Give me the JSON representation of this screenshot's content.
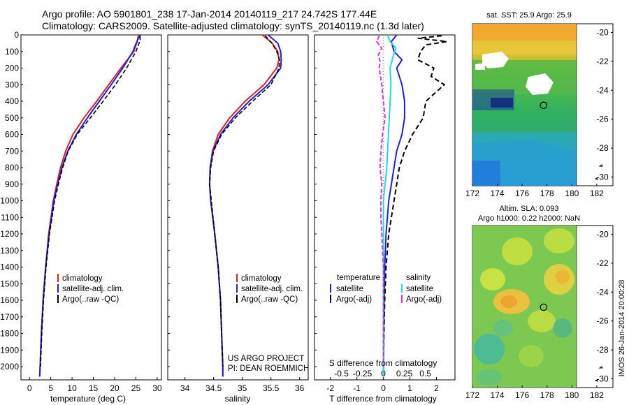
{
  "titles": {
    "line1": "Argo profile: AO 5901801_238 17-Jan-2014 20140119_217 24.742S 177.44E",
    "line2": "Climatology: CARS2009. Satellite-adjusted climatology: synTS_20140119.nc (1.3d later)"
  },
  "colors": {
    "climatology": "#e02020",
    "satellite": "#1f1fd8",
    "argo": "#000000",
    "sal_sat": "#22d8e6",
    "sal_argo": "#e030e0"
  },
  "depth_ticks": [
    "0",
    "100",
    "200",
    "300",
    "400",
    "500",
    "600",
    "700",
    "800",
    "900",
    "1000",
    "1100",
    "1200",
    "1300",
    "1400",
    "1500",
    "1600",
    "1700",
    "1800",
    "1900",
    "2000"
  ],
  "chart_data": [
    {
      "type": "line",
      "id": "temperature",
      "xlabel": "temperature (deg C)",
      "ylabel": "",
      "xlim": [
        -2,
        31
      ],
      "ylim": [
        2080,
        0
      ],
      "xticks": [
        0,
        5,
        10,
        15,
        20,
        25,
        30
      ],
      "legend": [
        "climatology",
        "satellite-adj. clim.",
        "Argo(..raw -QC)"
      ],
      "series": [
        {
          "name": "climatology",
          "depth": [
            0,
            40,
            100,
            200,
            300,
            400,
            500,
            600,
            700,
            800,
            900,
            1000,
            1200,
            1400,
            1600,
            1800,
            2000,
            2060
          ],
          "values": [
            25.6,
            25.3,
            24.5,
            21.5,
            18.6,
            15.8,
            12.8,
            10.2,
            8.5,
            7.3,
            6.4,
            5.6,
            4.5,
            3.8,
            3.2,
            2.8,
            2.5,
            2.4
          ]
        },
        {
          "name": "satellite-adj. clim.",
          "depth": [
            0,
            30,
            60,
            100,
            200,
            300,
            400,
            500,
            600,
            700,
            800,
            900,
            1000,
            1200,
            1400,
            1600,
            1800,
            2000,
            2060
          ],
          "values": [
            26.1,
            25.4,
            24.9,
            24.3,
            21.9,
            19.2,
            16.4,
            13.6,
            11.0,
            9.0,
            7.6,
            6.6,
            5.7,
            4.6,
            3.8,
            3.2,
            2.8,
            2.5,
            2.4
          ]
        },
        {
          "name": "Argo(..raw -QC)",
          "depth": [
            5,
            30,
            60,
            100,
            200,
            300,
            400,
            500,
            600,
            700,
            800,
            900,
            1000,
            1200,
            1400,
            1600,
            1800,
            2000
          ],
          "values": [
            26.0,
            26.0,
            25.6,
            25.0,
            22.8,
            20.2,
            17.3,
            14.3,
            11.2,
            9.1,
            7.8,
            6.8,
            5.9,
            4.7,
            3.9,
            3.3,
            2.9,
            2.6
          ]
        }
      ]
    },
    {
      "type": "line",
      "id": "salinity",
      "xlabel": "salinity",
      "ylabel": "",
      "xlim": [
        33.7,
        36.15
      ],
      "ylim": [
        2080,
        0
      ],
      "xticks": [
        34,
        34.5,
        35,
        35.5,
        36
      ],
      "xticklabels": [
        "34",
        "34.5",
        "35",
        "35.5",
        "36"
      ],
      "legend": [
        "climatology",
        "satellite-adj. clim.",
        "Argo(..raw -QC)"
      ],
      "annotation": [
        "US ARGO PROJECT",
        "PI: DEAN ROEMMICH"
      ],
      "series": [
        {
          "name": "climatology",
          "depth": [
            0,
            50,
            100,
            150,
            200,
            300,
            400,
            500,
            600,
            700,
            800,
            900,
            1000,
            1200,
            1400,
            1600,
            1800,
            2000,
            2060
          ],
          "values": [
            35.35,
            35.52,
            35.62,
            35.64,
            35.6,
            35.38,
            35.05,
            34.78,
            34.58,
            34.48,
            34.44,
            34.43,
            34.45,
            34.52,
            34.58,
            34.62,
            34.64,
            34.66,
            34.66
          ]
        },
        {
          "name": "satellite-adj. clim.",
          "depth": [
            0,
            50,
            100,
            150,
            200,
            300,
            400,
            500,
            600,
            700,
            800,
            900,
            1000,
            1200,
            1400,
            1600,
            1800,
            2000,
            2060
          ],
          "values": [
            35.45,
            35.62,
            35.67,
            35.68,
            35.67,
            35.45,
            35.12,
            34.84,
            34.62,
            34.49,
            34.44,
            34.43,
            34.45,
            34.52,
            34.58,
            34.62,
            34.64,
            34.66,
            34.66
          ]
        },
        {
          "name": "Argo(..raw -QC)",
          "depth": [
            5,
            50,
            100,
            150,
            200,
            300,
            400,
            500,
            600,
            700,
            800,
            900,
            1000,
            1200,
            1400,
            1600,
            1800,
            2000
          ],
          "values": [
            35.4,
            35.52,
            35.6,
            35.65,
            35.64,
            35.5,
            35.18,
            34.88,
            34.64,
            34.5,
            34.45,
            34.43,
            34.46,
            34.52,
            34.58,
            34.62,
            34.64,
            34.66
          ]
        }
      ]
    },
    {
      "type": "line",
      "id": "difference",
      "xlabel": "T difference from climatology",
      "xlabel2": "S difference from climatology",
      "xlim": [
        -2.6,
        2.7
      ],
      "ylim": [
        2080,
        0
      ],
      "xticks": [
        -2,
        -1,
        0,
        1,
        2
      ],
      "xticklabels": [
        "-2",
        "-1",
        "0",
        "1",
        "2"
      ],
      "sticks": [
        -0.5,
        -0.25,
        0,
        0.25,
        0.5
      ],
      "sticklabels": [
        "-0.5",
        "-0.25",
        "0",
        "0.25",
        "0.5"
      ],
      "legend_titles": [
        "temperature",
        "salinity"
      ],
      "legend": [
        "satellite",
        "Argo(-adj)",
        "satellite",
        "Argo(-adj)"
      ],
      "series": [
        {
          "name": "T satellite",
          "depth": [
            0,
            40,
            100,
            150,
            200,
            300,
            400,
            500,
            600,
            700,
            800,
            900,
            1000,
            1200,
            1400,
            1600,
            1800,
            2000,
            2060
          ],
          "values": [
            0.5,
            0.3,
            0.4,
            0.7,
            0.5,
            0.7,
            0.8,
            0.8,
            0.7,
            0.5,
            0.4,
            0.3,
            0.2,
            0.1,
            0.05,
            0.03,
            0.01,
            0.0,
            0.0
          ]
        },
        {
          "name": "T Argo(-adj)",
          "depth": [
            5,
            20,
            40,
            60,
            80,
            100,
            150,
            200,
            250,
            300,
            400,
            500,
            600,
            700,
            800,
            900,
            1000,
            1100,
            1200,
            1400,
            1600,
            1800,
            2000
          ],
          "values": [
            2.2,
            1.3,
            2.4,
            1.6,
            1.5,
            1.4,
            1.3,
            1.9,
            1.8,
            2.3,
            1.6,
            1.5,
            1.1,
            0.8,
            0.6,
            0.5,
            0.4,
            0.3,
            0.2,
            0.1,
            0.05,
            0.02,
            0.0
          ]
        },
        {
          "name": "S satellite",
          "depth": [
            0,
            40,
            80,
            120,
            160,
            200,
            300,
            400,
            500,
            600,
            700,
            800,
            900,
            1000,
            1200,
            1400,
            1600,
            1800,
            2000,
            2060
          ],
          "values": [
            0.05,
            0.08,
            0.15,
            0.12,
            0.1,
            0.08,
            0.09,
            0.08,
            0.07,
            0.06,
            0.05,
            0.04,
            0.02,
            0.0,
            0.0,
            0.0,
            0.0,
            0.0,
            0.0,
            0.0
          ]
        },
        {
          "name": "S Argo(-adj)",
          "depth": [
            5,
            40,
            80,
            120,
            160,
            200,
            300,
            400,
            500,
            600,
            700,
            800,
            900,
            1000,
            1100,
            1200,
            1300,
            1400,
            1600,
            1800,
            2000
          ],
          "values": [
            -0.05,
            -0.08,
            -0.02,
            -0.06,
            -0.04,
            -0.05,
            -0.02,
            0.0,
            0.02,
            -0.01,
            -0.03,
            -0.04,
            -0.02,
            -0.03,
            -0.03,
            -0.02,
            -0.01,
            0.0,
            0.0,
            0.0,
            0.0
          ]
        }
      ]
    },
    {
      "type": "heatmap",
      "id": "sst_map",
      "title": "sat. SST: 25.9 Argo: 25.9",
      "xticks": [
        172,
        174,
        176,
        178,
        180,
        182
      ],
      "yticks": [
        -20,
        -22,
        -24,
        -26,
        -28,
        -30
      ],
      "xlim": [
        172,
        183.3
      ],
      "ylim": [
        -30.6,
        -19.4
      ],
      "data_extent": [
        172,
        180
      ],
      "argo_lon": 177.44,
      "argo_lat": -24.742
    },
    {
      "type": "heatmap",
      "id": "sla_map",
      "title": "Altim. SLA: 0.093",
      "subtitle": "Argo h1000: 0.22 h2000: NaN",
      "xticks": [
        172,
        174,
        176,
        178,
        180,
        182
      ],
      "yticks": [
        -20,
        -22,
        -24,
        -26,
        -28,
        -30
      ],
      "xlim": [
        172,
        183.3
      ],
      "ylim": [
        -30.6,
        -19.4
      ],
      "data_extent": [
        172,
        180
      ],
      "argo_lon": 177.44,
      "argo_lat": -24.742
    }
  ],
  "footer": "IMOS 26-Jan-2014 20:00:28"
}
